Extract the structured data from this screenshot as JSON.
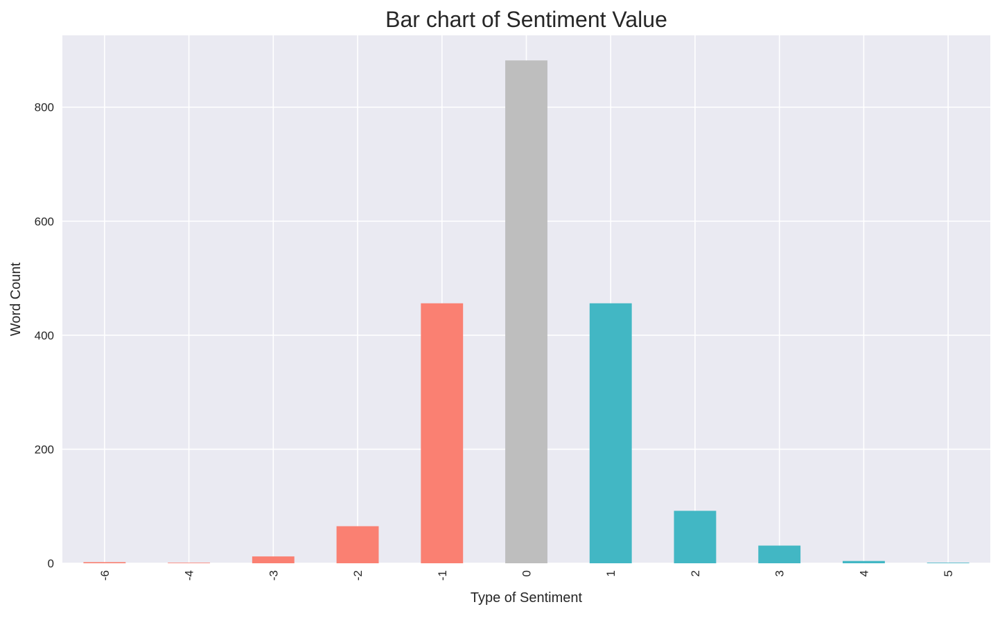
{
  "chart_data": {
    "type": "bar",
    "title": "Bar chart of Sentiment Value",
    "xlabel": "Type of Sentiment",
    "ylabel": "Word Count",
    "categories": [
      "-6",
      "-4",
      "-3",
      "-2",
      "-1",
      "0",
      "1",
      "2",
      "3",
      "4",
      "5"
    ],
    "values": [
      2,
      1,
      12,
      65,
      456,
      882,
      456,
      92,
      31,
      4,
      1
    ],
    "bar_colors": [
      "#fa8072",
      "#fa8072",
      "#fa8072",
      "#fa8072",
      "#fa8072",
      "#bebebe",
      "#42b7c4",
      "#42b7c4",
      "#42b7c4",
      "#42b7c4",
      "#42b7c4"
    ],
    "ylim": [
      0,
      926
    ],
    "yticks": [
      "0",
      "200",
      "400",
      "600",
      "800"
    ],
    "ytick_values": [
      0,
      200,
      400,
      600,
      800
    ],
    "xtick_rotation": "vertical",
    "grid": true,
    "background_color": "#eaeaf2",
    "grid_color": "#ffffff"
  }
}
